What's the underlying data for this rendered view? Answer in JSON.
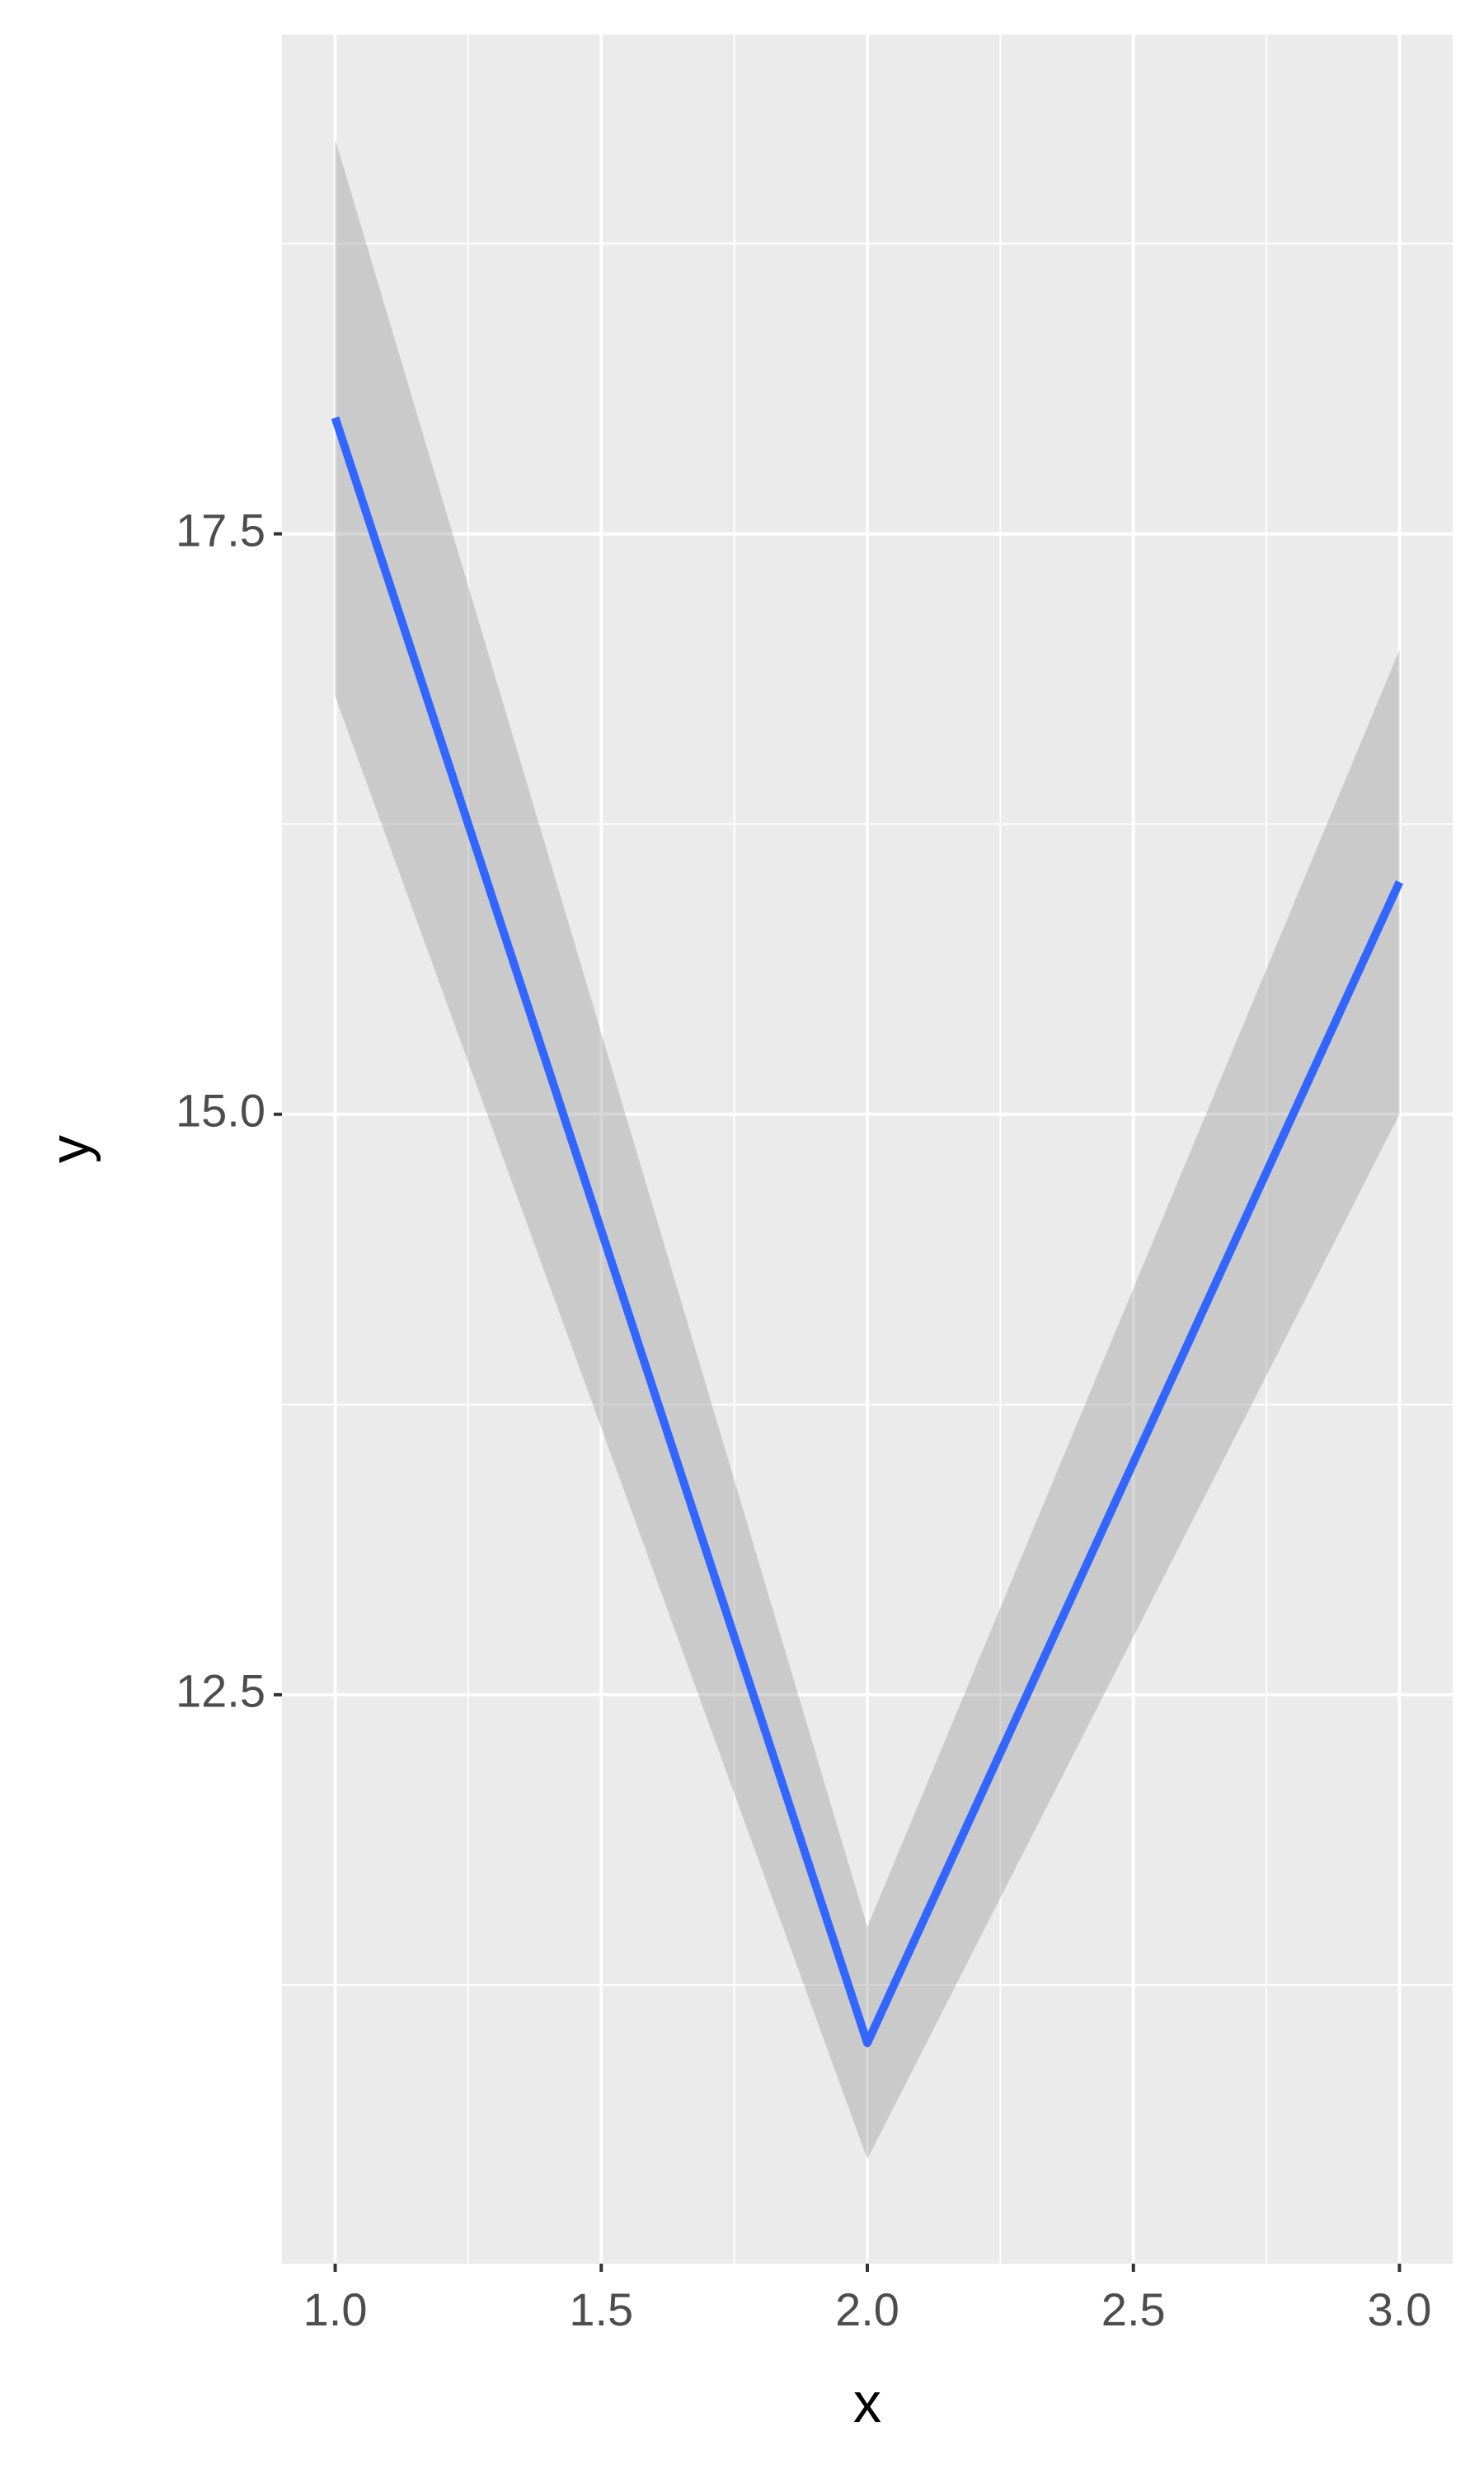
{
  "chart_data": {
    "type": "line",
    "x_label": "x",
    "y_label": "y",
    "x": [
      1,
      2,
      3
    ],
    "series": [
      {
        "color": "#3366FF",
        "values": [
          18.0,
          11.0,
          16.0
        ],
        "lower": [
          16.8,
          10.5,
          15.0
        ],
        "upper": [
          19.2,
          11.5,
          17.0
        ],
        "ribbon_color": "#999999"
      }
    ],
    "xlim": [
      0.9,
      3.1
    ],
    "xticks": [
      {
        "value": 1,
        "label": "1.0"
      },
      1.5,
      {
        "value": 2,
        "label": "2.0"
      },
      2.5,
      {
        "value": 3,
        "label": "3.0"
      }
    ],
    "ylim": [
      10.05,
      19.65
    ],
    "yticks": [
      12.5,
      {
        "value": 15,
        "label": "15.0"
      },
      17.5
    ],
    "grid": true,
    "background": "#EBEBEB"
  }
}
